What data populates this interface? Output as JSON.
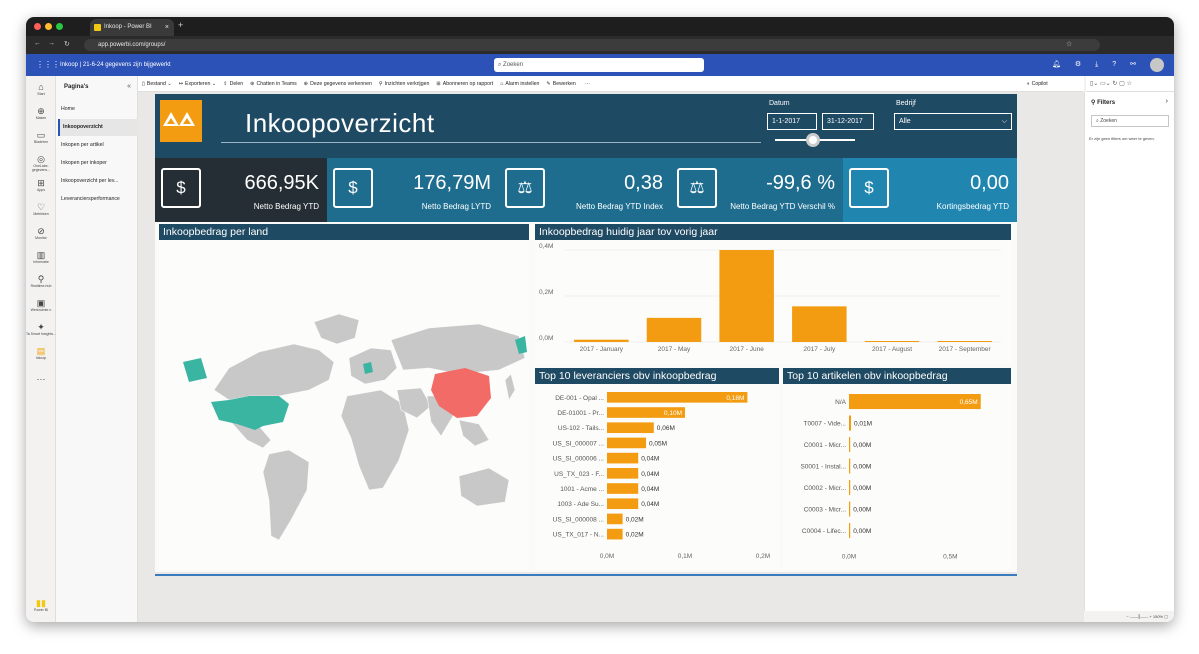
{
  "browser": {
    "tab_title": "Inkoop - Power BI",
    "tab_close": "×",
    "new_tab": "+",
    "url": "app.powerbi.com/groups/"
  },
  "pbi": {
    "breadcrumb": "Inkoop  |  21-6-24 gegevens zijn bijgewerkt",
    "search_placeholder": "Zoeken"
  },
  "leftrail": [
    {
      "icon": "home-icon",
      "label": "Start"
    },
    {
      "icon": "create-icon",
      "label": "Maken"
    },
    {
      "icon": "browse-icon",
      "label": "Bladeren"
    },
    {
      "icon": "onelake-icon",
      "label": "OneLake-gegevens..."
    },
    {
      "icon": "apps-icon",
      "label": "Apps"
    },
    {
      "icon": "metrics-icon",
      "label": "Metrieken"
    },
    {
      "icon": "monitor-icon",
      "label": "Monitor"
    },
    {
      "icon": "learn-icon",
      "label": "Informatie"
    },
    {
      "icon": "realtime-icon",
      "label": "Realtime-hub"
    },
    {
      "icon": "workspaces-icon",
      "label": "Werkruimte n"
    },
    {
      "icon": "smartinsights-icon",
      "label": "Ta Smart Insights..."
    },
    {
      "icon": "inkoop-icon",
      "label": "Inkoop"
    }
  ],
  "pages": {
    "header": "Pagina's",
    "items": [
      "Home",
      "Inkoopoverzicht",
      "Inkopen per artikel",
      "Inkopen per inkoper",
      "Inkoopoverzicht per lev...",
      "Leveranciersperformance"
    ]
  },
  "ribbon": {
    "items": [
      "Bestand ⌄",
      "Exporteren ⌄",
      "Delen",
      "Chatten in Teams",
      "Deze gegevens verkennen",
      "Inzichten verkrijgen",
      "Abonneren op rapport",
      "Alarm instellen",
      "Bewerken",
      "···"
    ],
    "copilot": "Copilot"
  },
  "filters": {
    "title": "Filters",
    "search": "Zoeken",
    "note": "Er zijn geen filters om weer te geven."
  },
  "zoom": "150%",
  "report": {
    "title": "Inkoopoverzicht",
    "datum_label": "Datum",
    "date_from": "1-1-2017",
    "date_to": "31-12-2017",
    "bedrijf_label": "Bedrijf",
    "bedrijf_value": "Alle",
    "kpis": [
      {
        "value": "666,95K",
        "label": "Netto Bedrag YTD",
        "icon": "money-chart-icon"
      },
      {
        "value": "176,79M",
        "label": "Netto Bedrag LYTD",
        "icon": "money-chart-icon"
      },
      {
        "value": "0,38",
        "label": "Netto Bedrag YTD Index",
        "icon": "scale-icon"
      },
      {
        "value": "-99,6 %",
        "label": "Netto Bedrag YTD Verschil %",
        "icon": "scale-icon"
      },
      {
        "value": "0,00",
        "label": "Kortingsbedrag YTD",
        "icon": "money-chart-icon"
      }
    ],
    "map_title": "Inkoopbedrag per land",
    "colors": {
      "header": "#1f4a63",
      "kpi_dark": "#252e35",
      "kpi_mid": "#1e6d8f",
      "kpi_light": "#2086b0",
      "bar": "#f39c12",
      "map_us": "#3ab5a2",
      "map_cn": "#f36b66",
      "land": "#c8c8c8"
    }
  },
  "chart_data": [
    {
      "type": "bar",
      "title": "Inkoopbedrag huidig jaar tov vorig jaar",
      "categories": [
        "2017 - January",
        "2017 - May",
        "2017 - June",
        "2017 - July",
        "2017 - August",
        "2017 - September"
      ],
      "values": [
        0.01,
        0.105,
        0.4,
        0.155,
        0.004,
        0.003
      ],
      "yticks": [
        "0,0M",
        "0,2M",
        "0,4M"
      ],
      "ylim": [
        0,
        0.4
      ]
    },
    {
      "type": "bar",
      "orientation": "horizontal",
      "title": "Top 10 leveranciers obv inkoopbedrag",
      "categories": [
        "DE-001 - Opal ...",
        "DE-01001 - Pr...",
        "US-102 - Tails...",
        "US_SI_000007 ...",
        "US_SI_000006 ...",
        "US_TX_023 - F...",
        "1001 - Acme ...",
        "1003 - Ade Su...",
        "US_SI_000008 ...",
        "US_TX_017 - N..."
      ],
      "values": [
        0.18,
        0.1,
        0.06,
        0.05,
        0.04,
        0.04,
        0.04,
        0.04,
        0.02,
        0.02
      ],
      "labels": [
        "0,18M",
        "0,10M",
        "0,06M",
        "0,05M",
        "0,04M",
        "0,04M",
        "0,04M",
        "0,04M",
        "0,02M",
        "0,02M"
      ],
      "xticks": [
        "0,0M",
        "0,1M",
        "0,2M"
      ],
      "xlim": [
        0,
        0.2
      ]
    },
    {
      "type": "bar",
      "orientation": "horizontal",
      "title": "Top 10 artikelen obv inkoopbedrag",
      "categories": [
        "N/A",
        "T0007 - Vide...",
        "C0001 - Micr...",
        "S0001 - Instal...",
        "C0002 - Micr...",
        "C0003 - Micr...",
        "C0004 - Lifec..."
      ],
      "values": [
        0.65,
        0.01,
        0.0,
        0.0,
        0.0,
        0.0,
        0.0
      ],
      "labels": [
        "0,65M",
        "0,01M",
        "0,00M",
        "0,00M",
        "0,00M",
        "0,00M",
        "0,00M"
      ],
      "xticks": [
        "0,0M",
        "0,5M"
      ],
      "xlim": [
        0,
        0.75
      ]
    }
  ]
}
